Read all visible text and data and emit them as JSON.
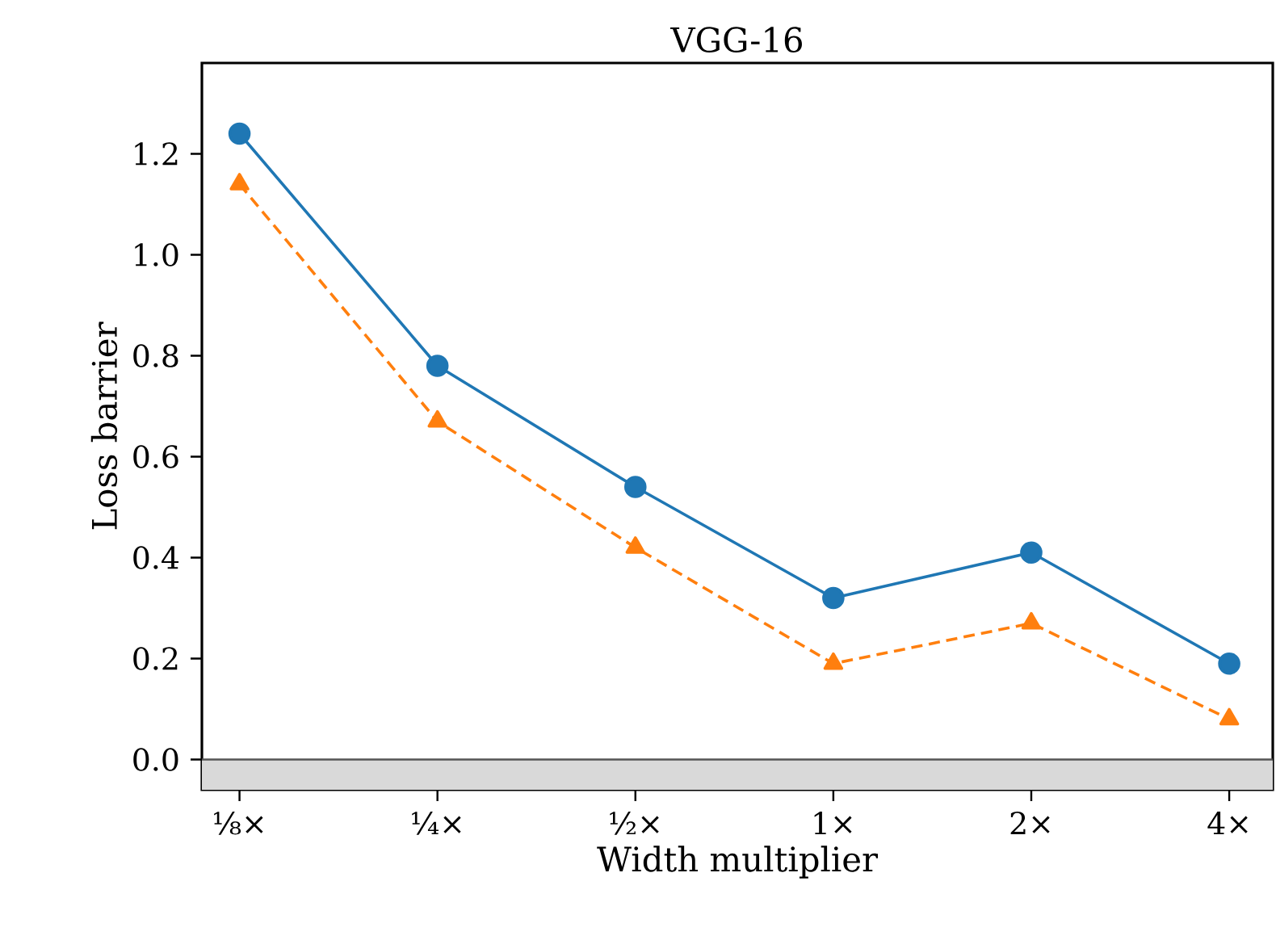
{
  "chart_data": {
    "type": "line",
    "title": "VGG-16",
    "xlabel": "Width multiplier",
    "ylabel": "Loss barrier",
    "categories": [
      "⅛×",
      "¼×",
      "½×",
      "1×",
      "2×",
      "4×"
    ],
    "series": [
      {
        "color": "#1f77b4",
        "values": [
          1.24,
          0.78,
          0.54,
          0.32,
          0.41,
          0.19
        ],
        "marker": "circle",
        "line_style": "solid"
      },
      {
        "color": "#ff7f0e",
        "values": [
          1.14,
          0.67,
          0.42,
          0.19,
          0.27,
          0.08
        ],
        "marker": "triangle",
        "line_style": "dashed"
      }
    ],
    "ylim": [
      -0.06,
      1.38
    ],
    "yticks": [
      {
        "value": 0,
        "label": "0.0"
      },
      0.2,
      0.4,
      0.6,
      0.8,
      {
        "value": 1,
        "label": "1.0"
      },
      1.2
    ],
    "ref_lines": [
      {
        "axis": "y",
        "value": 0,
        "color": "#555555"
      }
    ],
    "bands": [
      {
        "axis": "y",
        "from": -0.06,
        "to": 0,
        "color": "#d9d9d9"
      }
    ]
  }
}
